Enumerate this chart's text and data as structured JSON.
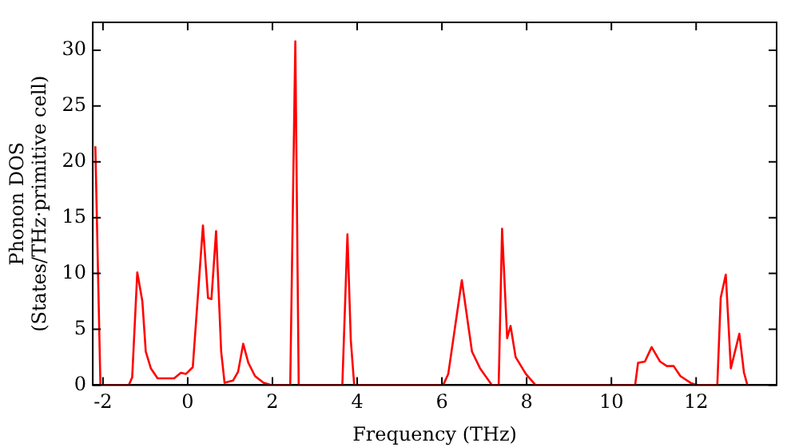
{
  "chart_data": {
    "type": "line",
    "xlabel": "Frequency (THz)",
    "ylabel": "Phonon DOS\n(States/THz·primitive cell)",
    "xlim": [
      -2.24,
      13.9
    ],
    "ylim": [
      0,
      32.5
    ],
    "xticks": [
      -2,
      0,
      2,
      4,
      6,
      8,
      10,
      12
    ],
    "yticks": [
      0,
      5,
      10,
      15,
      20,
      25,
      30
    ],
    "grid": false,
    "legend": false,
    "marker": "none",
    "line_style": "solid",
    "series": [
      {
        "color": "#ff0000",
        "x": [
          -2.18,
          -2.06,
          -1.39,
          -1.31,
          -1.19,
          -1.07,
          -0.99,
          -0.87,
          -0.71,
          -0.56,
          -0.32,
          -0.16,
          -0.04,
          0.12,
          0.36,
          0.48,
          0.56,
          0.67,
          0.79,
          0.87,
          1.07,
          1.19,
          1.31,
          1.43,
          1.59,
          1.79,
          1.98,
          2.42,
          2.54,
          2.62,
          3.65,
          3.77,
          3.85,
          3.93,
          6.03,
          6.15,
          6.47,
          6.71,
          6.9,
          7.18,
          7.34,
          7.42,
          7.54,
          7.62,
          7.74,
          7.98,
          8.21,
          10.56,
          10.63,
          10.79,
          10.95,
          11.15,
          11.31,
          11.47,
          11.63,
          11.87,
          12.02,
          12.5,
          12.58,
          12.7,
          12.82,
          13.02,
          13.13,
          13.21
        ],
        "values": [
          21.4,
          0,
          0,
          0.7,
          10.1,
          7.5,
          3,
          1.5,
          0.6,
          0.6,
          0.6,
          1.1,
          1.0,
          1.6,
          14.3,
          7.8,
          7.7,
          13.8,
          3,
          0.2,
          0.4,
          1.2,
          3.7,
          2,
          0.8,
          0.2,
          0,
          0,
          30.8,
          0,
          0,
          13.5,
          4,
          0,
          0,
          1,
          9.4,
          3,
          1.5,
          0,
          0,
          14,
          4.2,
          5.3,
          2.5,
          1,
          0,
          0,
          2,
          2.1,
          3.4,
          2.1,
          1.7,
          1.7,
          0.8,
          0.2,
          0,
          0,
          7.8,
          9.9,
          1.5,
          4.6,
          1.1,
          0
        ]
      }
    ]
  }
}
